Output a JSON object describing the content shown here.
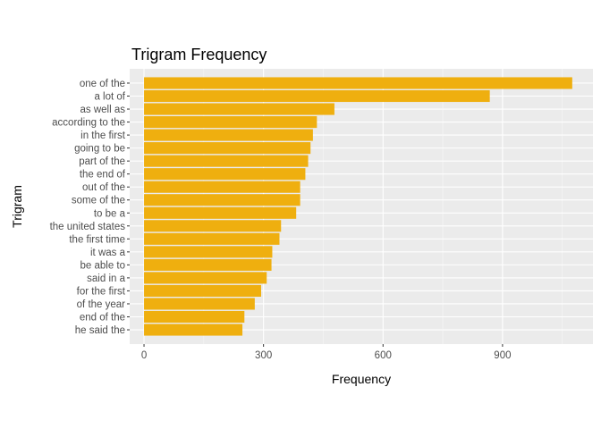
{
  "chart_data": {
    "type": "bar",
    "orientation": "horizontal",
    "title": "Trigram Frequency",
    "xlabel": "Frequency",
    "ylabel": "Trigram",
    "xlim": [
      -36,
      1127
    ],
    "x_ticks": [
      0,
      300,
      600,
      900
    ],
    "x_tick_labels": [
      "0",
      "300",
      "600",
      "900"
    ],
    "grid": true,
    "categories": [
      "one of the",
      "a lot of",
      "as well as",
      "according to the",
      "in the first",
      "going to be",
      "part of the",
      "the end of",
      "out of the",
      "some of the",
      "to be a",
      "the united states",
      "the first time",
      "it was a",
      "be able to",
      "said in a",
      "for the first",
      "of the year",
      "end of the",
      "he said the"
    ],
    "values": [
      1075,
      868,
      478,
      434,
      424,
      418,
      412,
      405,
      392,
      392,
      382,
      344,
      340,
      322,
      320,
      308,
      294,
      278,
      252,
      247
    ],
    "bar_color": "#EFAF0F",
    "panel_background": "#EBEBEB"
  }
}
